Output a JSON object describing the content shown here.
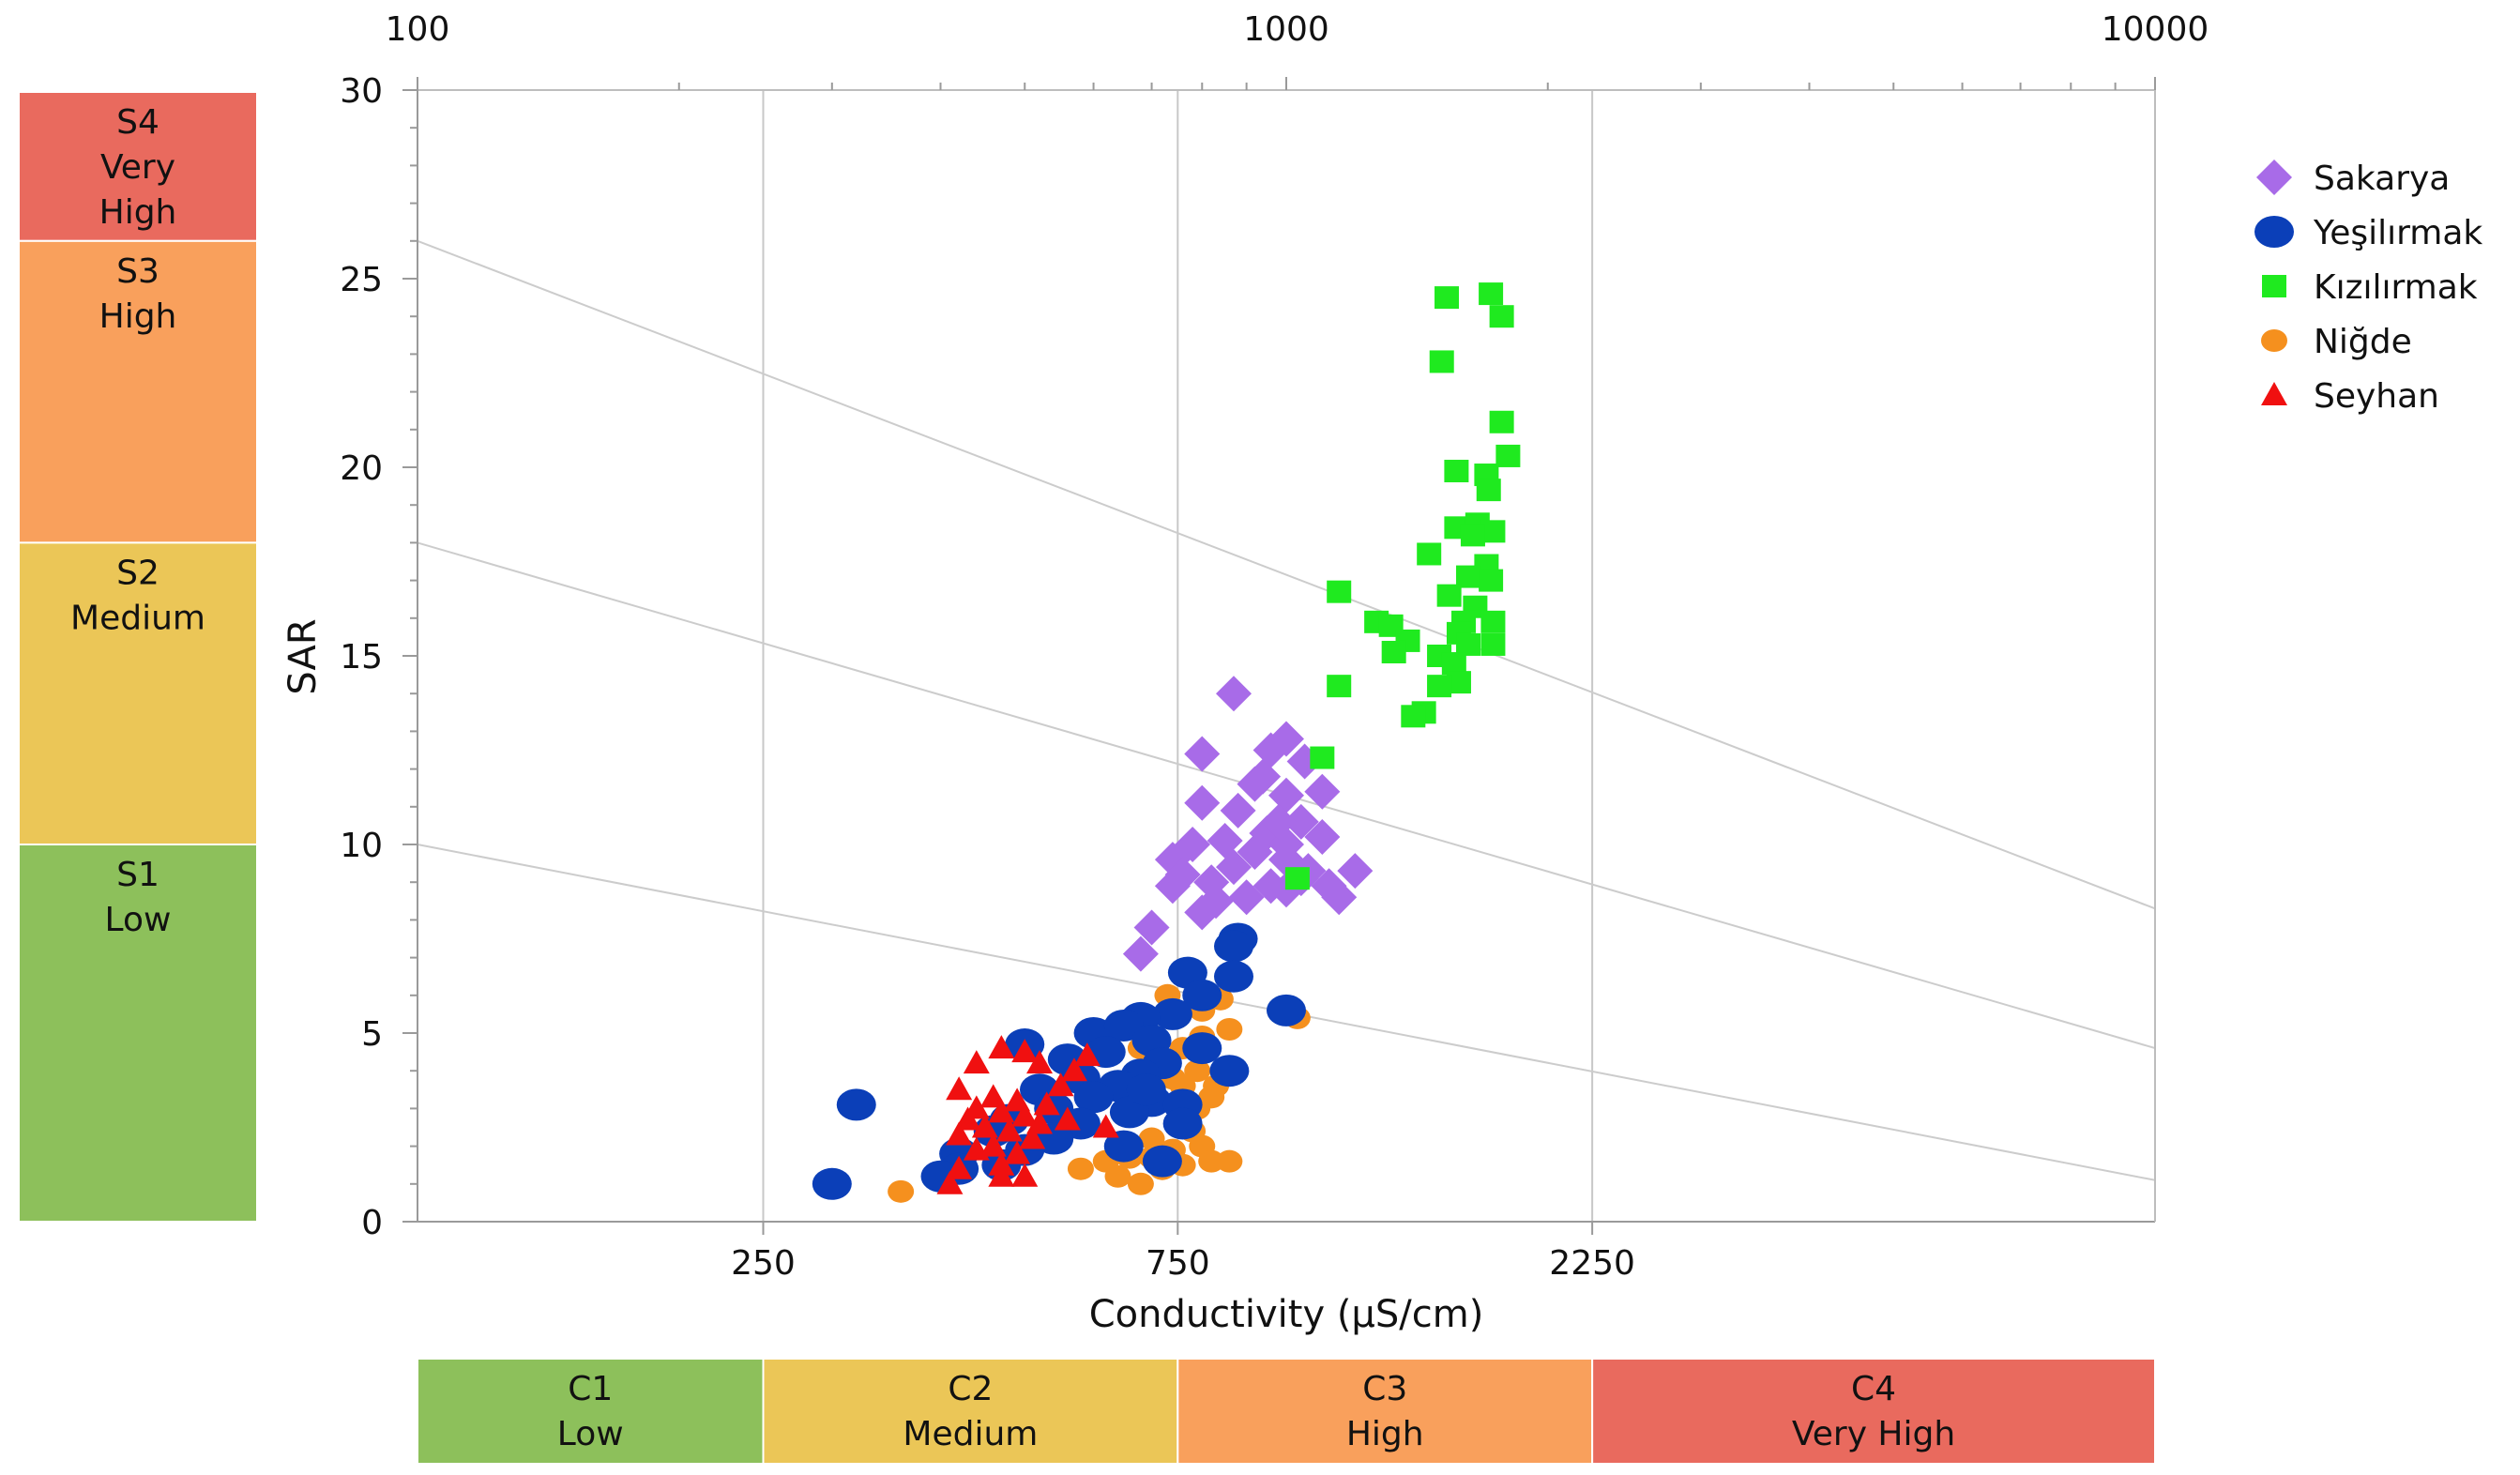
{
  "chart_data": {
    "type": "scatter",
    "title": "",
    "xlabel": "Conductivity (µS/cm)",
    "ylabel": "SAR",
    "x_scale": "log",
    "xlim": [
      100,
      10000
    ],
    "ylim": [
      0,
      30
    ],
    "y_ticks": [
      0,
      5,
      10,
      15,
      20,
      25,
      30
    ],
    "top_axis_ticks": [
      {
        "value": 100,
        "label": "100"
      },
      {
        "value": 1000,
        "label": "1000"
      },
      {
        "value": 10000,
        "label": "10000"
      }
    ],
    "bottom_axis_ticks": [
      {
        "value": 250,
        "label": "250"
      },
      {
        "value": 750,
        "label": "750"
      },
      {
        "value": 2250,
        "label": "2250"
      }
    ],
    "vertical_gridlines": [
      250,
      750,
      2250
    ],
    "hazard_lines": [
      {
        "from": [
          100,
          26.0
        ],
        "to": [
          10000,
          8.3
        ]
      },
      {
        "from": [
          100,
          18.0
        ],
        "to": [
          10000,
          4.6
        ]
      },
      {
        "from": [
          100,
          10.0
        ],
        "to": [
          10000,
          1.1
        ]
      }
    ],
    "salinity_classes": [
      {
        "line1": "C1",
        "line2": "Low",
        "from": 100,
        "to": 250,
        "color": "#8DC05B"
      },
      {
        "line1": "C2",
        "line2": "Medium",
        "from": 250,
        "to": 750,
        "color": "#EBC657"
      },
      {
        "line1": "C3",
        "line2": "High",
        "from": 750,
        "to": 2250,
        "color": "#F9A05C"
      },
      {
        "line1": "C4",
        "line2": "Very High",
        "from": 2250,
        "to": 10000,
        "color": "#E96A5E"
      }
    ],
    "sodium_classes": [
      {
        "line1": "S4",
        "line2": "Very",
        "line3": "High",
        "from": 26.0,
        "to": 30,
        "color": "#E96A5E"
      },
      {
        "line1": "S3",
        "line2": "High",
        "line3": "",
        "from": 18.0,
        "to": 26.0,
        "color": "#F9A05C"
      },
      {
        "line1": "S2",
        "line2": "Medium",
        "line3": "",
        "from": 10.0,
        "to": 18.0,
        "color": "#EBC657"
      },
      {
        "line1": "S1",
        "line2": "Low",
        "line3": "",
        "from": 0,
        "to": 10.0,
        "color": "#8DC05B"
      }
    ],
    "legend": {
      "position": "right"
    },
    "series": [
      {
        "name": "Sakarya",
        "marker": "diamond",
        "color": "#A86BE8",
        "points": [
          [
            870,
            14.0
          ],
          [
            800,
            12.4
          ],
          [
            1000,
            12.8
          ],
          [
            960,
            12.5
          ],
          [
            1050,
            12.2
          ],
          [
            920,
            11.6
          ],
          [
            1000,
            11.3
          ],
          [
            1100,
            11.4
          ],
          [
            800,
            11.1
          ],
          [
            880,
            10.9
          ],
          [
            1040,
            10.6
          ],
          [
            950,
            10.3
          ],
          [
            850,
            10.1
          ],
          [
            1000,
            10.0
          ],
          [
            780,
            10.0
          ],
          [
            1100,
            10.2
          ],
          [
            920,
            9.8
          ],
          [
            1000,
            9.6
          ],
          [
            740,
            9.6
          ],
          [
            870,
            9.4
          ],
          [
            1200,
            9.3
          ],
          [
            1040,
            9.1
          ],
          [
            820,
            9.0
          ],
          [
            960,
            8.9
          ],
          [
            1000,
            8.8
          ],
          [
            740,
            8.9
          ],
          [
            1150,
            8.6
          ],
          [
            900,
            8.6
          ],
          [
            800,
            8.2
          ],
          [
            700,
            7.8
          ],
          [
            680,
            7.1
          ],
          [
            1060,
            9.3
          ],
          [
            940,
            11.8
          ],
          [
            830,
            8.5
          ],
          [
            760,
            9.2
          ],
          [
            1120,
            8.9
          ],
          [
            980,
            10.6
          ]
        ]
      },
      {
        "name": "Yeşilırmak",
        "marker": "circle",
        "color": "#0B3FB8",
        "points": [
          [
            880,
            7.5
          ],
          [
            870,
            7.3
          ],
          [
            770,
            6.6
          ],
          [
            870,
            6.5
          ],
          [
            800,
            6.0
          ],
          [
            1000,
            5.6
          ],
          [
            740,
            5.5
          ],
          [
            680,
            5.4
          ],
          [
            600,
            5.0
          ],
          [
            650,
            5.2
          ],
          [
            700,
            4.8
          ],
          [
            500,
            4.7
          ],
          [
            800,
            4.6
          ],
          [
            560,
            4.3
          ],
          [
            620,
            4.5
          ],
          [
            720,
            4.2
          ],
          [
            860,
            4.0
          ],
          [
            680,
            3.9
          ],
          [
            580,
            3.8
          ],
          [
            640,
            3.6
          ],
          [
            520,
            3.5
          ],
          [
            600,
            3.3
          ],
          [
            700,
            3.2
          ],
          [
            760,
            3.1
          ],
          [
            320,
            3.1
          ],
          [
            540,
            3.0
          ],
          [
            660,
            2.9
          ],
          [
            480,
            2.7
          ],
          [
            580,
            2.6
          ],
          [
            460,
            2.4
          ],
          [
            540,
            2.2
          ],
          [
            500,
            1.9
          ],
          [
            420,
            1.8
          ],
          [
            470,
            1.5
          ],
          [
            420,
            1.4
          ],
          [
            300,
            1.0
          ],
          [
            400,
            1.2
          ],
          [
            720,
            1.6
          ],
          [
            650,
            2.0
          ],
          [
            760,
            2.6
          ],
          [
            690,
            3.5
          ]
        ]
      },
      {
        "name": "Kızılırmak",
        "marker": "square",
        "color": "#1FEA1F",
        "points": [
          [
            1530,
            24.5
          ],
          [
            1720,
            24.6
          ],
          [
            1770,
            24.0
          ],
          [
            1510,
            22.8
          ],
          [
            1770,
            21.2
          ],
          [
            1570,
            19.9
          ],
          [
            1700,
            19.8
          ],
          [
            1800,
            20.3
          ],
          [
            1710,
            19.4
          ],
          [
            1570,
            18.4
          ],
          [
            1660,
            18.5
          ],
          [
            1730,
            18.3
          ],
          [
            1640,
            18.2
          ],
          [
            1460,
            17.7
          ],
          [
            1700,
            17.4
          ],
          [
            1620,
            17.1
          ],
          [
            1540,
            16.6
          ],
          [
            1720,
            17.0
          ],
          [
            1650,
            16.3
          ],
          [
            1600,
            15.9
          ],
          [
            1730,
            15.9
          ],
          [
            1150,
            16.7
          ],
          [
            1270,
            15.9
          ],
          [
            1320,
            15.8
          ],
          [
            1580,
            15.6
          ],
          [
            1380,
            15.4
          ],
          [
            1330,
            15.1
          ],
          [
            1620,
            15.3
          ],
          [
            1730,
            15.3
          ],
          [
            1500,
            15.0
          ],
          [
            1560,
            14.8
          ],
          [
            1580,
            14.3
          ],
          [
            1500,
            14.2
          ],
          [
            1150,
            14.2
          ],
          [
            1440,
            13.5
          ],
          [
            1400,
            13.4
          ],
          [
            1100,
            12.3
          ],
          [
            1030,
            9.1
          ]
        ]
      },
      {
        "name": "Niğde",
        "marker": "circle",
        "color": "#F5901E",
        "points": [
          [
            840,
            5.9
          ],
          [
            730,
            6.0
          ],
          [
            800,
            5.6
          ],
          [
            1030,
            5.4
          ],
          [
            860,
            5.1
          ],
          [
            800,
            4.9
          ],
          [
            760,
            4.6
          ],
          [
            680,
            4.6
          ],
          [
            700,
            4.3
          ],
          [
            790,
            4.0
          ],
          [
            740,
            3.8
          ],
          [
            830,
            3.6
          ],
          [
            760,
            3.6
          ],
          [
            820,
            3.3
          ],
          [
            790,
            3.0
          ],
          [
            700,
            2.2
          ],
          [
            740,
            1.9
          ],
          [
            800,
            2.0
          ],
          [
            660,
            1.7
          ],
          [
            700,
            1.7
          ],
          [
            760,
            1.5
          ],
          [
            820,
            1.6
          ],
          [
            620,
            1.6
          ],
          [
            580,
            1.4
          ],
          [
            640,
            1.2
          ],
          [
            680,
            1.0
          ],
          [
            360,
            0.8
          ],
          [
            720,
            1.4
          ],
          [
            860,
            1.6
          ],
          [
            690,
            3.8
          ],
          [
            780,
            2.4
          ]
        ]
      },
      {
        "name": "Seyhan",
        "marker": "triangle",
        "color": "#F01010",
        "points": [
          [
            470,
            4.6
          ],
          [
            500,
            4.5
          ],
          [
            440,
            4.2
          ],
          [
            520,
            4.2
          ],
          [
            570,
            4.0
          ],
          [
            420,
            3.5
          ],
          [
            460,
            3.3
          ],
          [
            490,
            3.2
          ],
          [
            530,
            3.1
          ],
          [
            440,
            3.0
          ],
          [
            470,
            2.9
          ],
          [
            500,
            2.8
          ],
          [
            430,
            2.7
          ],
          [
            520,
            2.6
          ],
          [
            560,
            2.7
          ],
          [
            450,
            2.5
          ],
          [
            480,
            2.4
          ],
          [
            420,
            2.3
          ],
          [
            510,
            2.2
          ],
          [
            460,
            2.0
          ],
          [
            440,
            1.9
          ],
          [
            490,
            1.8
          ],
          [
            620,
            2.5
          ],
          [
            470,
            1.5
          ],
          [
            420,
            1.4
          ],
          [
            500,
            1.2
          ],
          [
            410,
            1.0
          ],
          [
            470,
            1.2
          ],
          [
            550,
            3.6
          ],
          [
            590,
            4.4
          ]
        ]
      }
    ]
  }
}
